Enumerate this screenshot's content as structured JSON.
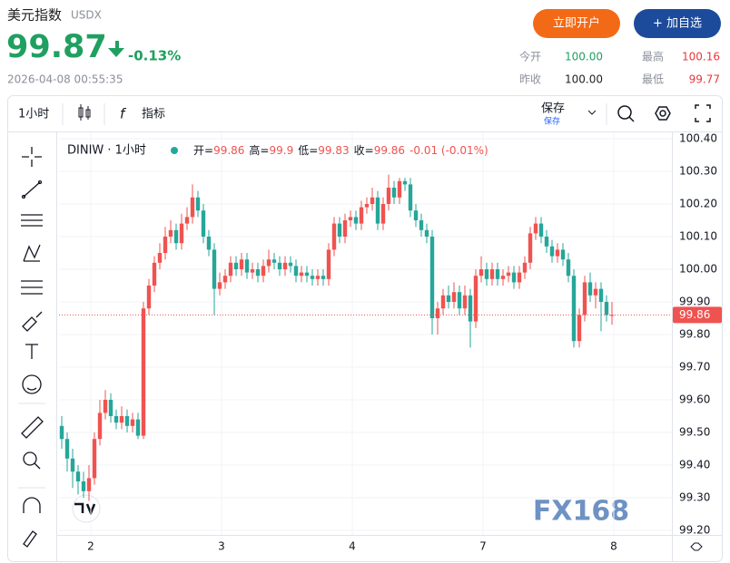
{
  "header": {
    "title": "美元指数",
    "symbol": "USDX",
    "price": "99.87",
    "change": "-0.13%",
    "datetime": "2026-04-08 00:55:35",
    "open_account": "立即开户",
    "add_watch": "+ 加自选",
    "stats": [
      {
        "label": "今开",
        "value": "100.00"
      },
      {
        "label": "最高",
        "value": "100.16"
      },
      {
        "label": "昨收",
        "value": "100.00"
      },
      {
        "label": "最低",
        "value": "99.77"
      }
    ]
  },
  "toolbar": {
    "interval": "1小时",
    "indicators": "指标",
    "save": "保存",
    "save_sub": "保存"
  },
  "watermark": "FX168",
  "chart_data": {
    "type": "candlestick",
    "legend_title": "DINIW · 1小时",
    "legend_labels": [
      "开=",
      "高=",
      "低=",
      "收="
    ],
    "legend_change": "-0.01 (-0.01%)",
    "up_color": "#ef5350",
    "down_color": "#26a69a",
    "grid": true,
    "open": [
      99.52,
      99.48,
      99.42,
      99.38,
      99.35,
      99.32,
      99.36,
      99.48,
      99.56,
      99.6,
      99.55,
      99.53,
      99.55,
      99.52,
      99.54,
      99.49,
      99.88,
      99.95,
      100.02,
      100.05,
      100.1,
      100.12,
      100.08,
      100.14,
      100.16,
      100.22,
      100.18,
      100.1,
      100.06,
      99.94,
      99.96,
      99.98,
      100.02,
      100.0,
      100.03,
      99.99,
      100.0,
      99.98,
      100.01,
      100.03,
      100.02,
      100.0,
      100.02,
      100.01,
      99.98,
      99.99,
      99.98,
      99.97,
      99.98,
      99.97,
      100.06,
      100.14,
      100.1,
      100.15,
      100.16,
      100.14,
      100.19,
      100.2,
      100.22,
      100.14,
      100.2,
      100.25,
      100.22,
      100.27,
      100.26,
      100.18,
      100.15,
      100.12,
      100.1,
      99.85,
      99.88,
      99.92,
      99.9,
      99.93,
      99.88,
      99.92,
      99.84,
      99.98,
      100.0,
      99.97,
      100.0,
      99.97,
      99.98,
      99.99,
      99.96,
      99.99,
      100.02,
      100.11,
      100.14,
      100.1,
      100.07,
      100.04,
      100.06,
      100.03,
      99.98,
      99.78,
      99.86,
      99.96,
      99.92,
      99.94,
      99.9,
      99.86
    ],
    "high": [
      99.55,
      99.5,
      99.45,
      99.4,
      99.38,
      99.4,
      99.5,
      99.6,
      99.63,
      99.62,
      99.57,
      99.58,
      99.57,
      99.56,
      99.56,
      99.9,
      99.97,
      100.04,
      100.08,
      100.13,
      100.15,
      100.14,
      100.17,
      100.19,
      100.26,
      100.24,
      100.2,
      100.12,
      100.08,
      99.99,
      100.0,
      100.04,
      100.04,
      100.05,
      100.05,
      100.02,
      100.02,
      100.03,
      100.06,
      100.05,
      100.04,
      100.04,
      100.04,
      100.03,
      100.01,
      100.01,
      100.0,
      100.0,
      100.0,
      100.08,
      100.16,
      100.16,
      100.17,
      100.18,
      100.18,
      100.21,
      100.22,
      100.25,
      100.24,
      100.22,
      100.29,
      100.27,
      100.28,
      100.28,
      100.28,
      100.2,
      100.17,
      100.14,
      100.12,
      99.9,
      99.94,
      99.95,
      99.96,
      99.95,
      99.95,
      99.94,
      100.0,
      100.04,
      100.02,
      100.02,
      100.02,
      100.0,
      100.01,
      100.01,
      100.01,
      100.04,
      100.13,
      100.16,
      100.16,
      100.12,
      100.09,
      100.08,
      100.08,
      100.05,
      100.0,
      99.88,
      99.98,
      99.99,
      99.96,
      99.96,
      99.92,
      99.9
    ],
    "low": [
      99.45,
      99.38,
      99.33,
      99.31,
      99.3,
      99.29,
      99.34,
      99.46,
      99.54,
      99.53,
      99.51,
      99.51,
      99.5,
      99.5,
      99.48,
      99.48,
      99.86,
      99.93,
      100.0,
      100.03,
      100.08,
      100.06,
      100.06,
      100.12,
      100.14,
      100.16,
      100.08,
      100.04,
      99.86,
      99.92,
      99.94,
      99.96,
      99.98,
      99.98,
      99.97,
      99.97,
      99.96,
      99.96,
      99.99,
      100.0,
      99.98,
      99.98,
      99.99,
      99.96,
      99.96,
      99.96,
      99.95,
      99.95,
      99.95,
      99.95,
      100.04,
      100.08,
      100.08,
      100.13,
      100.12,
      100.12,
      100.17,
      100.18,
      100.12,
      100.12,
      100.18,
      100.2,
      100.2,
      100.24,
      100.16,
      100.13,
      100.1,
      100.08,
      99.8,
      99.8,
      99.86,
      99.88,
      99.88,
      99.86,
      99.86,
      99.76,
      99.82,
      99.96,
      99.95,
      99.95,
      99.95,
      99.95,
      99.96,
      99.94,
      99.94,
      99.97,
      100.0,
      100.09,
      100.08,
      100.05,
      100.02,
      100.02,
      100.01,
      99.96,
      99.76,
      99.76,
      99.84,
      99.9,
      99.88,
      99.81,
      99.84,
      99.83
    ],
    "close": [
      99.48,
      99.42,
      99.38,
      99.35,
      99.32,
      99.36,
      99.48,
      99.56,
      99.6,
      99.55,
      99.53,
      99.55,
      99.52,
      99.54,
      99.49,
      99.88,
      99.95,
      100.02,
      100.05,
      100.1,
      100.12,
      100.08,
      100.14,
      100.16,
      100.22,
      100.18,
      100.1,
      100.06,
      99.94,
      99.96,
      99.98,
      100.02,
      100.0,
      100.03,
      99.99,
      100.0,
      99.98,
      100.01,
      100.03,
      100.02,
      100.0,
      100.02,
      100.01,
      99.98,
      99.99,
      99.98,
      99.97,
      99.98,
      99.97,
      100.06,
      100.14,
      100.1,
      100.15,
      100.16,
      100.14,
      100.19,
      100.2,
      100.22,
      100.14,
      100.2,
      100.25,
      100.22,
      100.27,
      100.26,
      100.18,
      100.15,
      100.12,
      100.1,
      99.85,
      99.88,
      99.92,
      99.9,
      99.93,
      99.88,
      99.92,
      99.84,
      99.98,
      100.0,
      99.97,
      100.0,
      99.97,
      99.98,
      99.99,
      99.96,
      99.99,
      100.02,
      100.11,
      100.14,
      100.1,
      100.07,
      100.04,
      100.06,
      100.03,
      99.98,
      99.78,
      99.86,
      99.96,
      99.92,
      99.94,
      99.9,
      99.86,
      99.86
    ],
    "xlim": [
      -0.5,
      112
    ],
    "xticks": [
      {
        "value": 5.33,
        "label": "2"
      },
      {
        "value": 29.33,
        "label": "3"
      },
      {
        "value": 53.33,
        "label": "4"
      },
      {
        "value": 77.33,
        "label": "7"
      },
      {
        "value": 101.33,
        "label": "8"
      }
    ],
    "ylim": [
      99.2,
      100.4
    ],
    "yticks": [
      {
        "value": 100.4,
        "label": "100.40"
      },
      {
        "value": 100.3,
        "label": "100.30"
      },
      {
        "value": 100.2,
        "label": "100.20"
      },
      {
        "value": 100.1,
        "label": "100.10"
      },
      {
        "value": 100.0,
        "label": "100.00"
      },
      {
        "value": 99.9,
        "label": "99.90"
      },
      {
        "value": 99.8,
        "label": "99.80"
      },
      {
        "value": 99.7,
        "label": "99.70"
      },
      {
        "value": 99.6,
        "label": "99.60"
      },
      {
        "value": 99.5,
        "label": "99.50"
      },
      {
        "value": 99.4,
        "label": "99.40"
      },
      {
        "value": 99.3,
        "label": "99.30"
      },
      {
        "value": 99.2,
        "label": "99.20"
      }
    ]
  }
}
